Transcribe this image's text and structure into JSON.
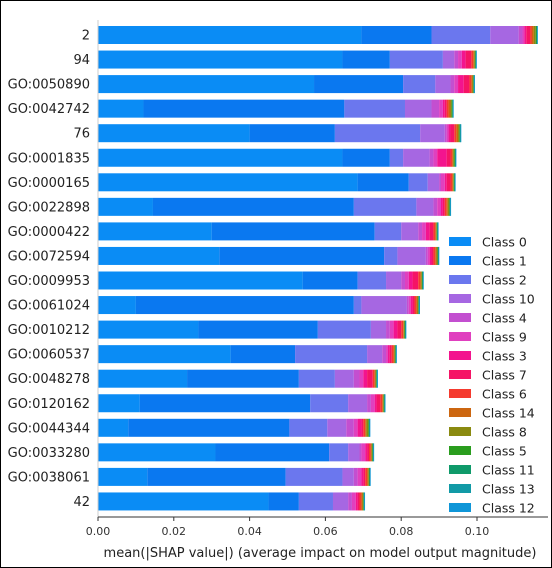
{
  "chart_data": {
    "type": "bar",
    "orientation": "horizontal",
    "stacked": true,
    "xlabel": "mean(|SHAP value|) (average impact on model output magnitude)",
    "ylabel": "",
    "title": "",
    "xlim": [
      0,
      0.12
    ],
    "xticks": [
      "0.00",
      "0.02",
      "0.04",
      "0.06",
      "0.08",
      "0.10"
    ],
    "xtick_values": [
      0,
      0.02,
      0.04,
      0.06,
      0.08,
      0.1
    ],
    "legend_position": "lower-right",
    "categories": [
      "2",
      "94",
      "GO:0050890",
      "GO:0042742",
      "76",
      "GO:0001835",
      "GO:0000165",
      "GO:0022898",
      "GO:0000422",
      "GO:0072594",
      "GO:0009953",
      "GO:0061024",
      "GO:0010212",
      "GO:0060537",
      "GO:0048278",
      "GO:0120162",
      "GO:0044344",
      "GO:0033280",
      "GO:0038061",
      "42"
    ],
    "series": [
      {
        "name": "Class 0",
        "color": "#0a8cf5",
        "values": [
          0.0695,
          0.0645,
          0.057,
          0.012,
          0.04,
          0.0645,
          0.0685,
          0.0145,
          0.03,
          0.032,
          0.054,
          0.01,
          0.0265,
          0.035,
          0.0235,
          0.011,
          0.008,
          0.031,
          0.013,
          0.045
        ]
      },
      {
        "name": "Class 1",
        "color": "#0a78f0",
        "values": [
          0.0185,
          0.0125,
          0.0235,
          0.053,
          0.0225,
          0.0125,
          0.0135,
          0.053,
          0.043,
          0.0435,
          0.0145,
          0.0575,
          0.0315,
          0.017,
          0.0295,
          0.045,
          0.0425,
          0.03,
          0.0365,
          0.008
        ]
      },
      {
        "name": "Class 2",
        "color": "#6b77ee",
        "values": [
          0.0155,
          0.014,
          0.0085,
          0.016,
          0.0225,
          0.0035,
          0.005,
          0.0165,
          0.007,
          0.0035,
          0.0075,
          0.002,
          0.014,
          0.019,
          0.0095,
          0.01,
          0.01,
          0.005,
          0.015,
          0.009
        ]
      },
      {
        "name": "Class 10",
        "color": "#a667e2",
        "values": [
          0.0075,
          0.003,
          0.004,
          0.007,
          0.0065,
          0.007,
          0.003,
          0.0045,
          0.0045,
          0.0075,
          0.004,
          0.012,
          0.004,
          0.004,
          0.005,
          0.005,
          0.005,
          0.003,
          0.003,
          0.004
        ]
      },
      {
        "name": "Class 4",
        "color": "#c34fd0",
        "values": [
          0.001,
          0.001,
          0.001,
          0.002,
          0.0005,
          0.001,
          0.0005,
          0.001,
          0.001,
          0.0005,
          0.001,
          0.0005,
          0.001,
          0.001,
          0.0015,
          0.001,
          0.002,
          0.0005,
          0.001,
          0.001
        ]
      },
      {
        "name": "Class 9",
        "color": "#e040bf",
        "values": [
          0.0005,
          0.001,
          0.001,
          0.001,
          0.0005,
          0.001,
          0.001,
          0.001,
          0.001,
          0.0005,
          0.001,
          0.0005,
          0.001,
          0.0005,
          0.001,
          0.001,
          0.001,
          0.001,
          0.001,
          0.001
        ]
      },
      {
        "name": "Class 3",
        "color": "#f3148e",
        "values": [
          0.0005,
          0.001,
          0.0015,
          0.0005,
          0.0005,
          0.0025,
          0.0005,
          0.0005,
          0.001,
          0.0005,
          0.001,
          0.0005,
          0.001,
          0.0005,
          0.001,
          0.0005,
          0.001,
          0.0005,
          0.0005,
          0.0005
        ]
      },
      {
        "name": "Class 7",
        "color": "#f51466",
        "values": [
          0.001,
          0.0015,
          0.0015,
          0.0005,
          0.001,
          0.001,
          0.001,
          0.0005,
          0.001,
          0.0005,
          0.0015,
          0.0005,
          0.001,
          0.0005,
          0.0015,
          0.001,
          0.0005,
          0.0005,
          0.0005,
          0.0005
        ]
      },
      {
        "name": "Class 6",
        "color": "#f53a2e",
        "values": [
          0.0005,
          0.0005,
          0.0005,
          0.0005,
          0.0005,
          0.0005,
          0.0005,
          0.0005,
          0.0005,
          0.0005,
          0.0005,
          0.0005,
          0.0005,
          0.0005,
          0.0005,
          0.0005,
          0.0005,
          0.0005,
          0.0005,
          0.0005
        ]
      },
      {
        "name": "Class 14",
        "color": "#cc6610",
        "values": [
          0.0005,
          0.0003,
          0.0003,
          0.0005,
          0.0005,
          0.0002,
          0.0002,
          0.0003,
          0.0002,
          0.0003,
          0.0003,
          0.0003,
          0.0002,
          0.0002,
          0.0002,
          0.0002,
          0.0003,
          0.0002,
          0.0003,
          0.0003
        ]
      },
      {
        "name": "Class 8",
        "color": "#8a8a10",
        "values": [
          0.0005,
          0.0002,
          0.0002,
          0.0003,
          0.0003,
          0.0003,
          0.0002,
          0.0003,
          0.0002,
          0.0003,
          0.0002,
          0.0002,
          0.0002,
          0.0002,
          0.0002,
          0.0002,
          0.0005,
          0.0002,
          0.0002,
          0.0002
        ]
      },
      {
        "name": "Class 5",
        "color": "#2a9d1e",
        "values": [
          0.0002,
          0.0001,
          0.0001,
          0.0002,
          0.0002,
          0.0002,
          0.0001,
          0.0002,
          0.0001,
          0.0001,
          0.0001,
          0.0001,
          0.0001,
          0.0001,
          0.0001,
          0.0001,
          0.0002,
          0.0001,
          0.0001,
          0.0001
        ]
      },
      {
        "name": "Class 11",
        "color": "#0f9a6a",
        "values": [
          0.0001,
          0.0001,
          0.0001,
          0.0001,
          0.0001,
          0.0001,
          0.0001,
          0.0001,
          0.0001,
          0.0001,
          0.0001,
          0.0001,
          0.0001,
          0.0001,
          0.0001,
          0.0001,
          0.0001,
          0.0001,
          0.0001,
          0.0001
        ]
      },
      {
        "name": "Class 13",
        "color": "#119aa6",
        "values": [
          0.0001,
          0.0001,
          0.0001,
          0.0001,
          0.0001,
          0.0001,
          0.0001,
          0.0001,
          0.0001,
          0.0001,
          0.0001,
          0.0001,
          0.0001,
          0.0001,
          0.0001,
          0.0001,
          0.0001,
          0.0001,
          0.0001,
          0.0001
        ]
      },
      {
        "name": "Class 12",
        "color": "#0f96d8",
        "values": [
          0.0001,
          0.0001,
          0.0001,
          0.0001,
          0.0001,
          0.0001,
          0.0001,
          0.0001,
          0.0001,
          0.0001,
          0.0001,
          0.0001,
          0.0001,
          0.0001,
          0.0001,
          0.0001,
          0.0001,
          0.0001,
          0.0001,
          0.0001
        ]
      }
    ]
  }
}
